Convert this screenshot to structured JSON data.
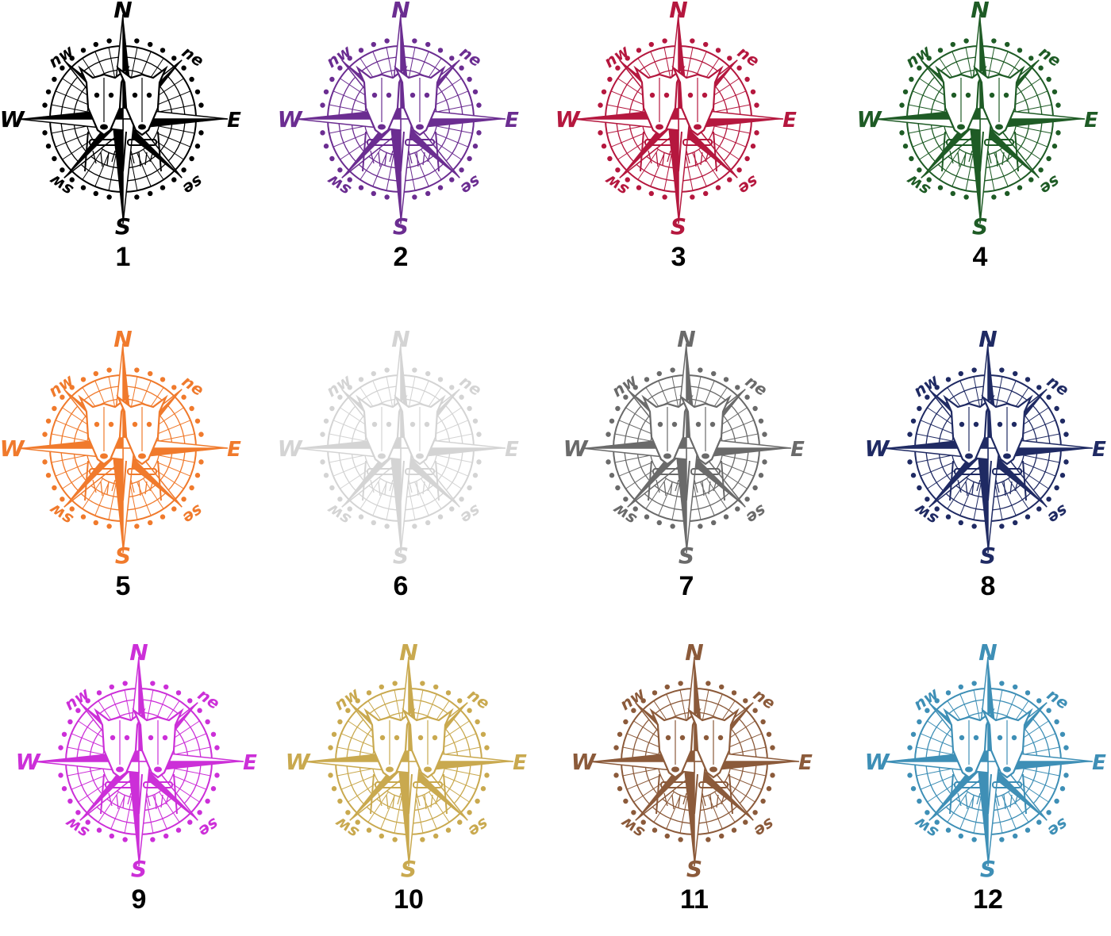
{
  "directions": {
    "n": "N",
    "e": "E",
    "s": "S",
    "w": "W",
    "ne": "ne",
    "nw": "nw",
    "se": "se",
    "sw": "sw"
  },
  "variants": [
    {
      "number": "1",
      "color": "#000000"
    },
    {
      "number": "2",
      "color": "#6b2d91"
    },
    {
      "number": "3",
      "color": "#b5173e"
    },
    {
      "number": "4",
      "color": "#1e5b25"
    },
    {
      "number": "5",
      "color": "#f07a2c"
    },
    {
      "number": "6",
      "color": "#d4d4d4"
    },
    {
      "number": "7",
      "color": "#6a6a6a"
    },
    {
      "number": "8",
      "color": "#1f2a63"
    },
    {
      "number": "9",
      "color": "#cc2fd8"
    },
    {
      "number": "10",
      "color": "#c9a94f"
    },
    {
      "number": "11",
      "color": "#8b5a3a"
    },
    {
      "number": "12",
      "color": "#3e8fb6"
    }
  ]
}
